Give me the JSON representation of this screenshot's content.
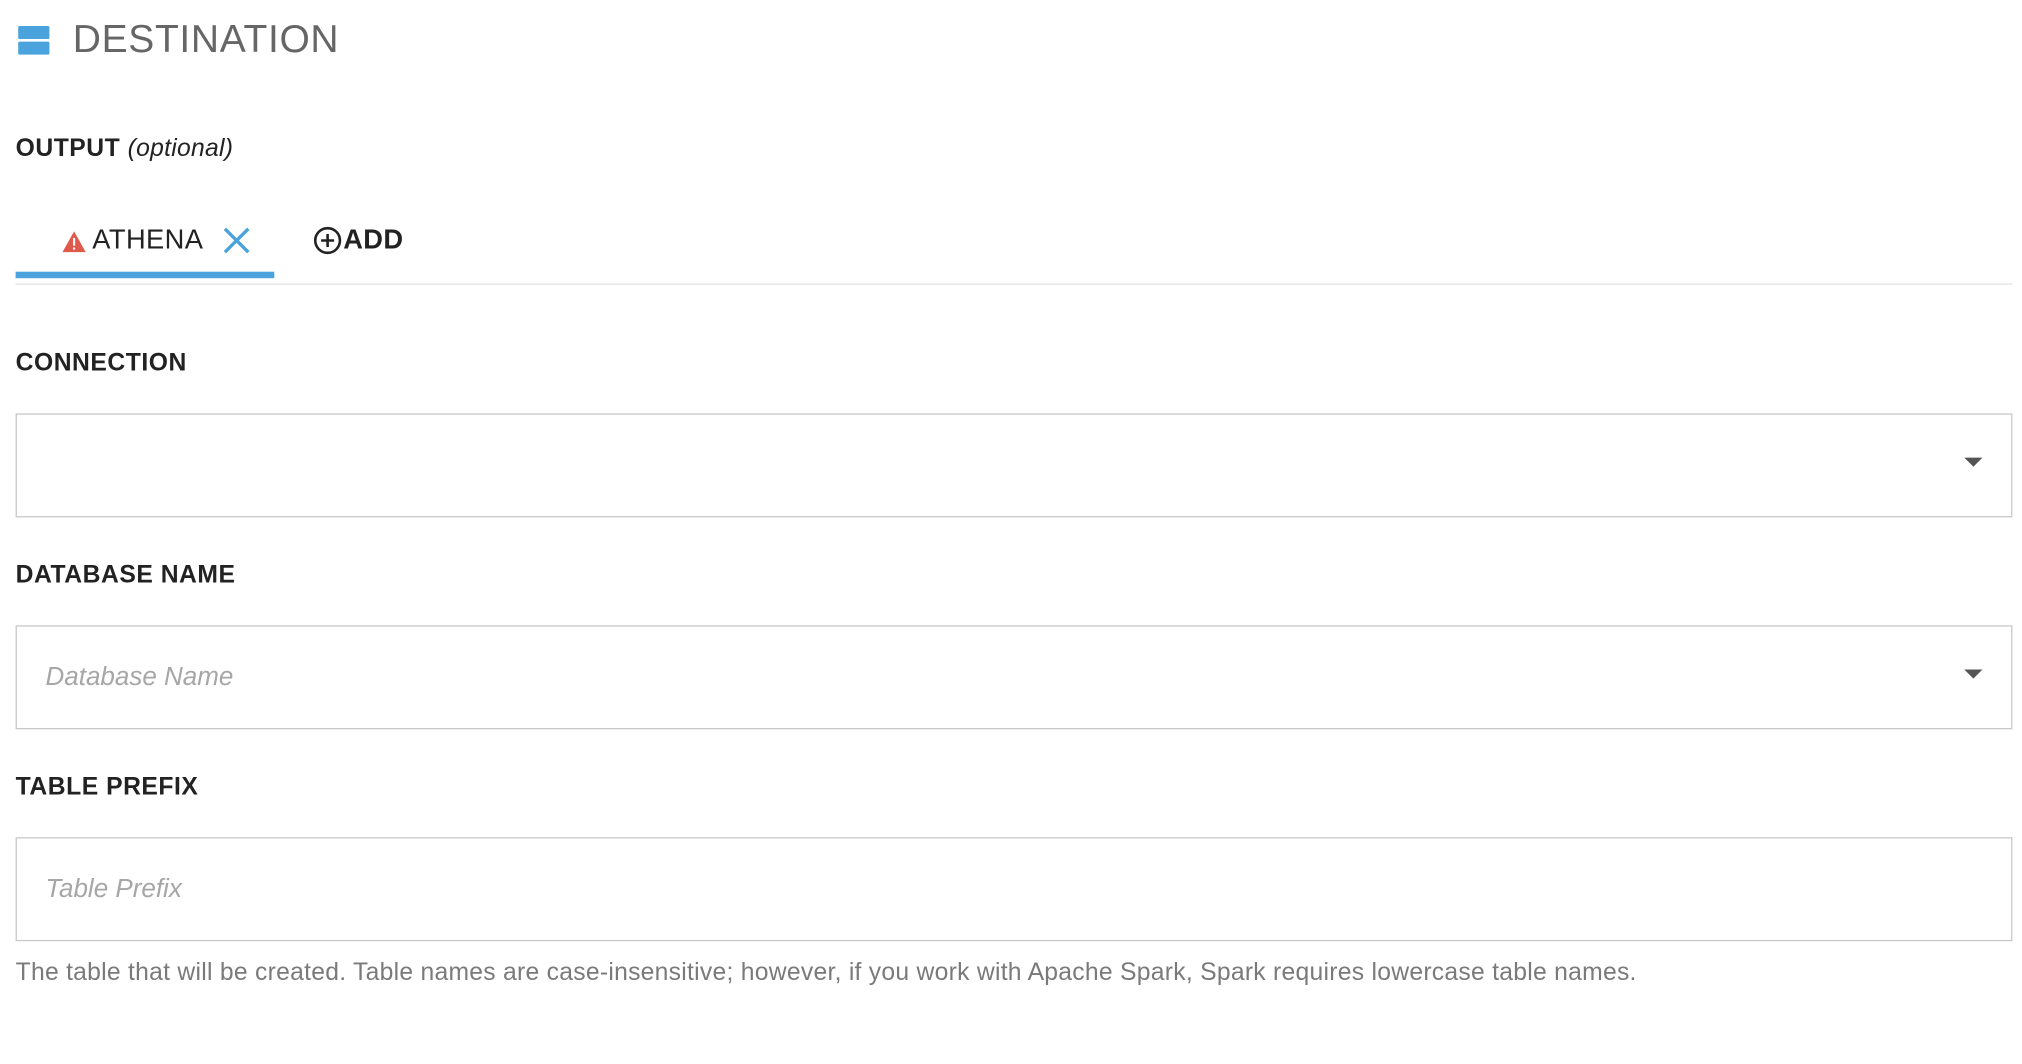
{
  "section": {
    "title": "DESTINATION",
    "icon": "database-icon",
    "accent_color": "#4aa3dc"
  },
  "output": {
    "label": "OUTPUT",
    "optional_text": "(optional)"
  },
  "tabs": {
    "active": {
      "label": "ATHENA",
      "status_icon": "warning-icon",
      "status_color": "#e05a4b",
      "close_icon": "close-icon"
    },
    "add": {
      "label": "ADD",
      "icon": "plus-circle-icon"
    }
  },
  "connection": {
    "label": "CONNECTION",
    "value": "",
    "placeholder": ""
  },
  "database_name": {
    "label": "DATABASE NAME",
    "value": "",
    "placeholder": "Database Name"
  },
  "table_prefix": {
    "label": "TABLE PREFIX",
    "value": "",
    "placeholder": "Table Prefix",
    "help": "The table that will be created. Table names are case-insensitive; however, if you work with Apache Spark, Spark requires lowercase table names."
  }
}
